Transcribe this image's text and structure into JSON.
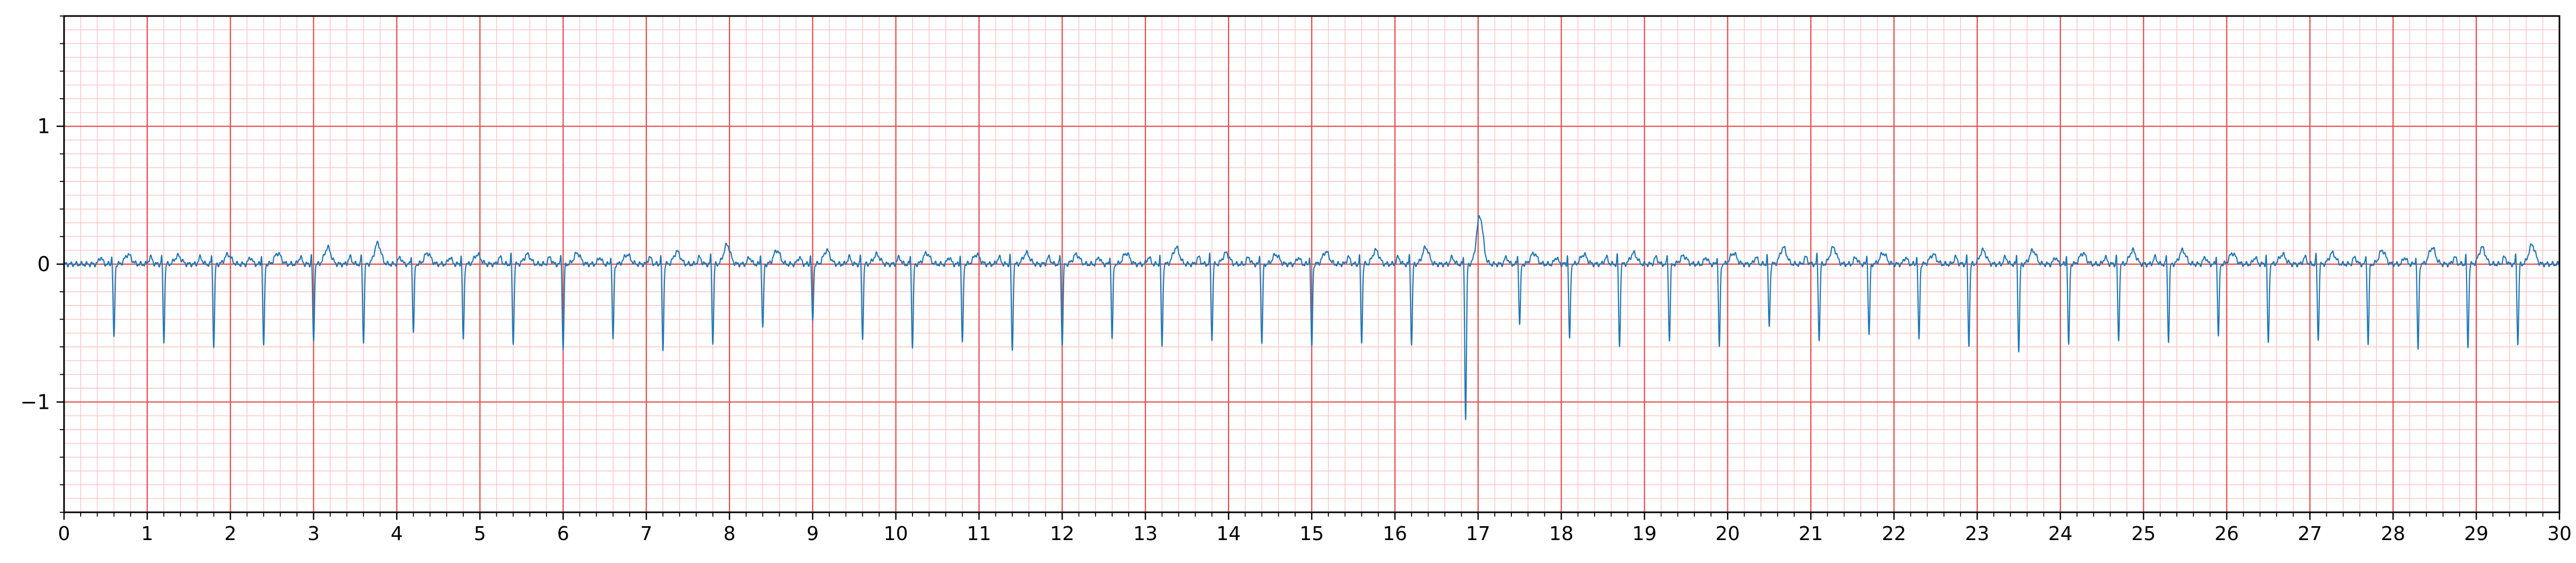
{
  "chart_data": {
    "type": "line",
    "title": "",
    "xlabel": "",
    "ylabel": "",
    "xlim": [
      0,
      30
    ],
    "ylim": [
      -1.8,
      1.8
    ],
    "x_ticks": [
      0,
      1,
      2,
      3,
      4,
      5,
      6,
      7,
      8,
      9,
      10,
      11,
      12,
      13,
      14,
      15,
      16,
      17,
      18,
      19,
      20,
      21,
      22,
      23,
      24,
      25,
      26,
      27,
      28,
      29,
      30
    ],
    "x_tick_labels": [
      "0",
      "1",
      "2",
      "3",
      "4",
      "5",
      "6",
      "7",
      "8",
      "9",
      "10",
      "11",
      "12",
      "13",
      "14",
      "15",
      "16",
      "17",
      "18",
      "19",
      "20",
      "21",
      "22",
      "23",
      "24",
      "25",
      "26",
      "27",
      "28",
      "29",
      "30"
    ],
    "y_ticks": [
      -1,
      0,
      1
    ],
    "y_tick_labels": [
      "−1",
      "0",
      "1"
    ],
    "grid": true,
    "grid_style": "ecg-paper",
    "colors": {
      "major_grid": "#e34a4a",
      "minor_grid": "#f8c4c4",
      "trace": "#1f77b4",
      "axes": "#000000"
    },
    "series": [
      {
        "name": "",
        "baseline": 0.0,
        "beat_times": [
          0.6,
          1.2,
          1.8,
          2.4,
          3.0,
          3.6,
          4.2,
          4.8,
          5.4,
          6.0,
          6.6,
          7.2,
          7.8,
          8.4,
          9.0,
          9.6,
          10.2,
          10.8,
          11.4,
          12.0,
          12.6,
          13.2,
          13.8,
          14.4,
          15.0,
          15.6,
          16.2,
          16.85,
          17.5,
          18.1,
          18.7,
          19.3,
          19.9,
          20.5,
          21.1,
          21.7,
          22.3,
          22.9,
          23.5,
          24.1,
          24.7,
          25.3,
          25.9,
          26.5,
          27.1,
          27.7,
          28.3,
          28.9,
          29.5
        ],
        "beat_troughs": [
          -0.54,
          -0.56,
          -0.59,
          -0.6,
          -0.57,
          -0.56,
          -0.49,
          -0.55,
          -0.58,
          -0.62,
          -0.55,
          -0.62,
          -0.57,
          -0.47,
          -0.42,
          -0.53,
          -0.6,
          -0.58,
          -0.63,
          -0.58,
          -0.54,
          -0.6,
          -0.55,
          -0.58,
          -0.6,
          -0.56,
          -0.58,
          -1.12,
          -0.43,
          -0.55,
          -0.6,
          -0.55,
          -0.6,
          -0.45,
          -0.55,
          -0.52,
          -0.55,
          -0.58,
          -0.63,
          -0.6,
          -0.56,
          -0.55,
          -0.52,
          -0.58,
          -0.55,
          -0.58,
          -0.62,
          -0.6,
          -0.58
        ],
        "t_wave_peaks": [
          0.07,
          0.06,
          0.07,
          0.08,
          0.12,
          0.15,
          0.08,
          0.07,
          0.07,
          0.08,
          0.07,
          0.09,
          0.14,
          0.1,
          0.1,
          0.07,
          0.08,
          0.07,
          0.08,
          0.07,
          0.08,
          0.12,
          0.08,
          0.07,
          0.09,
          0.1,
          0.12,
          0.35,
          0.08,
          0.07,
          0.08,
          0.06,
          0.08,
          0.12,
          0.12,
          0.08,
          0.07,
          0.1,
          0.1,
          0.08,
          0.1,
          0.1,
          0.08,
          0.07,
          0.08,
          0.1,
          0.12,
          0.12,
          0.14
        ]
      }
    ]
  }
}
